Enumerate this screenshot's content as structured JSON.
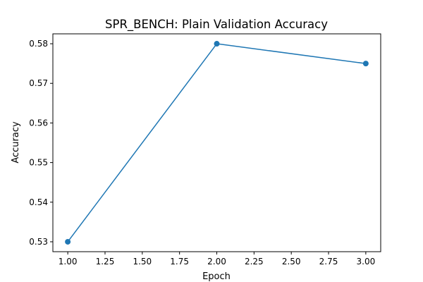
{
  "chart_data": {
    "type": "line",
    "title": "SPR_BENCH: Plain Validation Accuracy",
    "xlabel": "Epoch",
    "ylabel": "Accuracy",
    "xlim": [
      0.9,
      3.1
    ],
    "ylim": [
      0.5275,
      0.5825
    ],
    "xticks": [
      1.0,
      1.25,
      1.5,
      1.75,
      2.0,
      2.25,
      2.5,
      2.75,
      3.0
    ],
    "xtick_labels": [
      "1.00",
      "1.25",
      "1.50",
      "1.75",
      "2.00",
      "2.25",
      "2.50",
      "2.75",
      "3.00"
    ],
    "yticks": [
      0.53,
      0.54,
      0.55,
      0.56,
      0.57,
      0.58
    ],
    "ytick_labels": [
      "0.53",
      "0.54",
      "0.55",
      "0.56",
      "0.57",
      "0.58"
    ],
    "grid": false,
    "series": [
      {
        "x": [
          1,
          2,
          3
        ],
        "values": [
          0.53,
          0.58,
          0.575
        ],
        "color": "#1f77b4",
        "marker": "circle"
      }
    ]
  }
}
